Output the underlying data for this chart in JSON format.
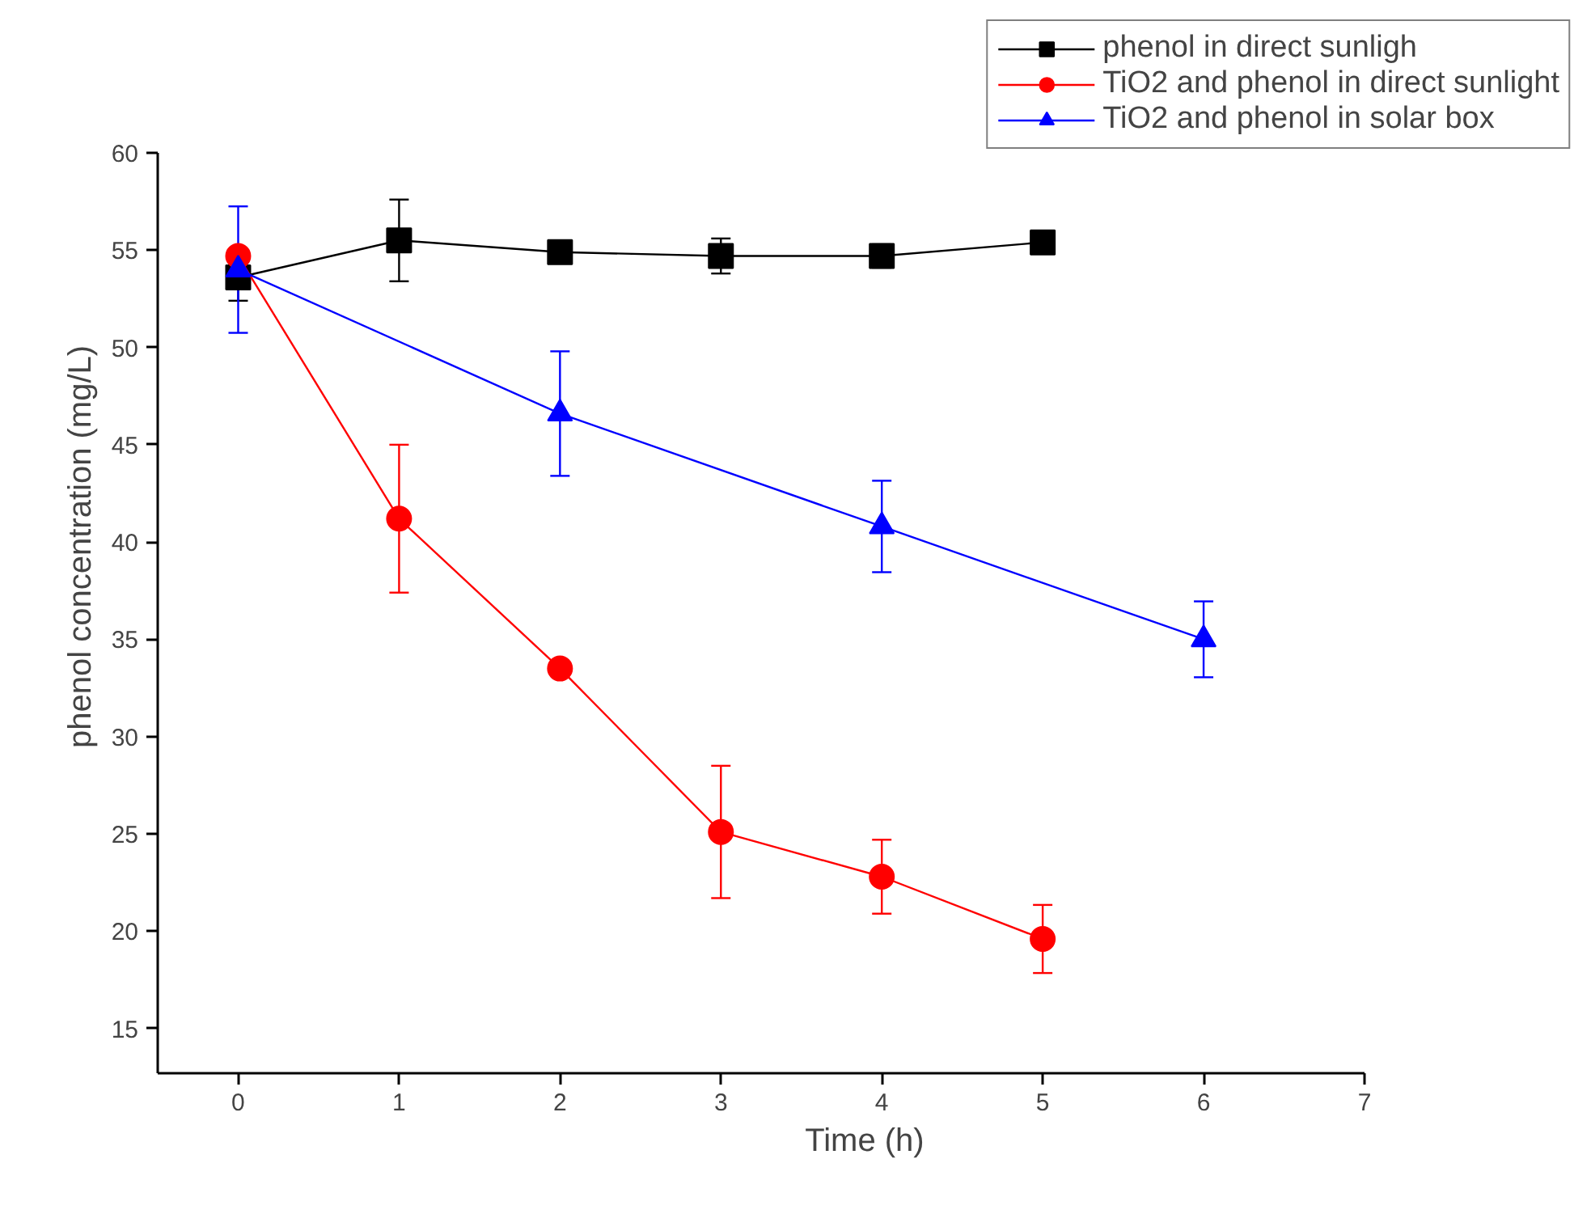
{
  "chart_data": {
    "type": "line",
    "xlabel": "Time (h)",
    "ylabel": "phenol concentration (mg/L)",
    "xlim": [
      -0.5,
      7
    ],
    "ylim": [
      12.7,
      60
    ],
    "xticks": [
      0,
      1,
      2,
      3,
      4,
      5,
      6,
      7
    ],
    "yticks": [
      15,
      20,
      25,
      30,
      35,
      40,
      45,
      50,
      55,
      60
    ],
    "grid": false,
    "legend": "top right",
    "line_style": "solid",
    "series": [
      {
        "name": "phenol in direct sunligh",
        "color": "#000000",
        "marker": "square",
        "x": [
          0,
          1,
          2,
          3,
          4,
          5
        ],
        "values": [
          53.6,
          55.5,
          54.9,
          54.7,
          54.7,
          55.4
        ],
        "errors": [
          1.2,
          2.1,
          0.3,
          0.9,
          0.6,
          null
        ]
      },
      {
        "name": "TiO2 and phenol in direct sunlight",
        "color": "#ff0000",
        "marker": "circle",
        "x": [
          0,
          1,
          2,
          3,
          4,
          5
        ],
        "values": [
          54.7,
          41.2,
          33.5,
          25.1,
          22.8,
          19.6
        ],
        "errors": [
          null,
          3.8,
          0.3,
          3.4,
          1.9,
          1.75
        ]
      },
      {
        "name": "TiO2 and phenol in solar box",
        "color": "#0000ff",
        "marker": "triangle",
        "x": [
          0,
          2,
          4,
          6
        ],
        "values": [
          54.0,
          46.6,
          40.8,
          35.0
        ],
        "errors": [
          3.25,
          3.2,
          2.35,
          1.95
        ]
      }
    ]
  }
}
